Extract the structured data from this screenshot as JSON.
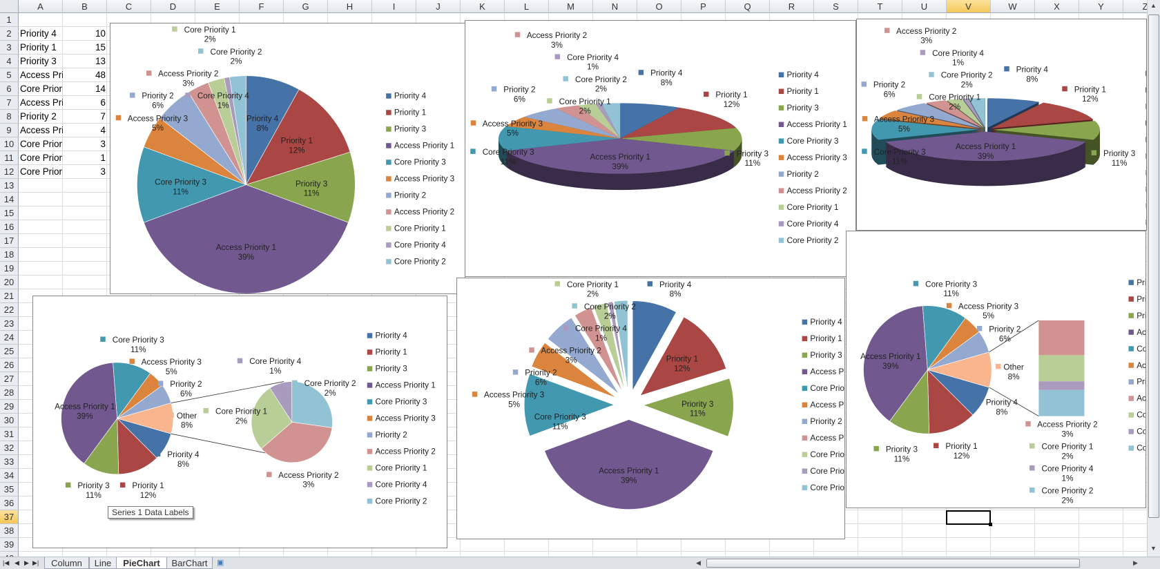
{
  "sheet": {
    "columns": [
      "A",
      "B",
      "C",
      "D",
      "E",
      "F",
      "G",
      "H",
      "I",
      "J",
      "K",
      "L",
      "M",
      "N",
      "O",
      "P",
      "Q",
      "R",
      "S",
      "T",
      "U",
      "V",
      "W",
      "X",
      "Y",
      "Z"
    ],
    "row_count": 40,
    "selected_cell": "V37",
    "tabs": [
      "Column",
      "Line",
      "PieChart",
      "BarChart"
    ],
    "active_tab": "PieChart"
  },
  "series": [
    {
      "name": "Priority 4",
      "value": 10,
      "pct": "8%",
      "color": "#4572a7"
    },
    {
      "name": "Priority 1",
      "value": 15,
      "pct": "12%",
      "color": "#aa4643"
    },
    {
      "name": "Priority 3",
      "value": 13,
      "pct": "11%",
      "color": "#89a54e"
    },
    {
      "name": "Access Priority 1",
      "value": 48,
      "pct": "39%",
      "color": "#71588f"
    },
    {
      "name": "Core Priority 3",
      "value": 14,
      "pct": "11%",
      "color": "#4198af"
    },
    {
      "name": "Access Priority 3",
      "value": 6,
      "pct": "5%",
      "color": "#db843d"
    },
    {
      "name": "Priority 2",
      "value": 7,
      "pct": "6%",
      "color": "#93a9cf"
    },
    {
      "name": "Access Priority 2",
      "value": 4,
      "pct": "3%",
      "color": "#d19392"
    },
    {
      "name": "Core Priority 1",
      "value": 3,
      "pct": "2%",
      "color": "#b9cd96"
    },
    {
      "name": "Core Priority 4",
      "value": 1,
      "pct": "1%",
      "color": "#a99bbd"
    },
    {
      "name": "Core Priority 2",
      "value": 3,
      "pct": "2%",
      "color": "#92c3d4"
    }
  ],
  "other": {
    "name": "Other",
    "value": 11,
    "pct": "8%",
    "color": "#f9b58e"
  },
  "tooltip": "Series 1 Data Labels"
}
